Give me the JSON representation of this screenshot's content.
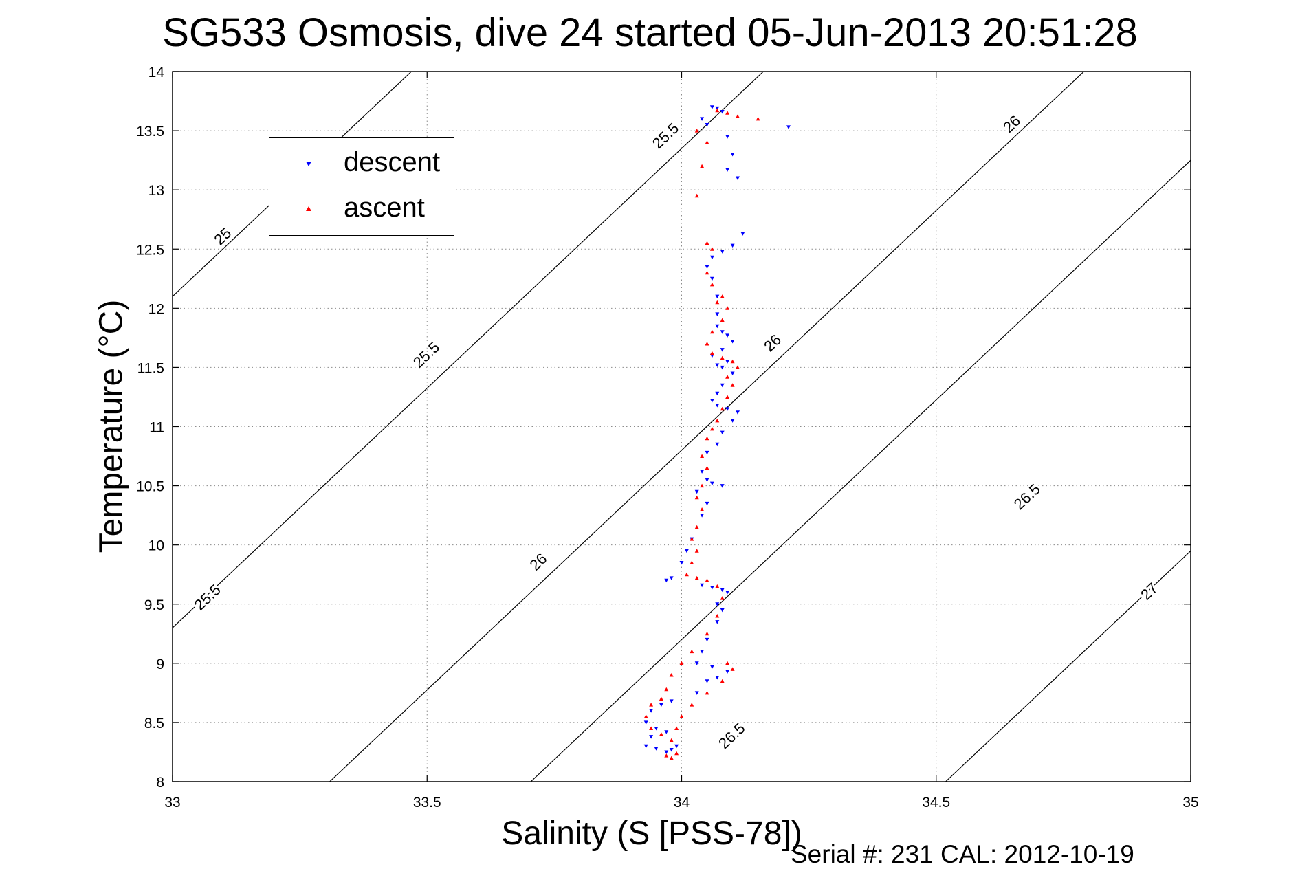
{
  "chart_data": {
    "type": "scatter",
    "title": "SG533 Osmosis, dive 24 started 05-Jun-2013 20:51:28",
    "xlabel": "Salinity (S [PSS-78])",
    "ylabel": "Temperature (°C)",
    "footer": "Serial #: 231  CAL: 2012-10-19",
    "xlim": [
      33,
      35
    ],
    "ylim": [
      8,
      14
    ],
    "xticks": [
      "33",
      "33.5",
      "34",
      "34.5",
      "35"
    ],
    "yticks": [
      "8",
      "8.5",
      "9",
      "9.5",
      "10",
      "10.5",
      "11",
      "11.5",
      "12",
      "12.5",
      "13",
      "13.5",
      "14"
    ],
    "grid": true,
    "legend_position": "top-left",
    "density_contours": [
      {
        "label": "25",
        "slope": 4.05,
        "intercept": -121.55
      },
      {
        "label": "25.5",
        "slope": 4.05,
        "intercept": -124.35
      },
      {
        "label": "25.5",
        "slope": 4.05,
        "intercept": -126.9
      },
      {
        "label": "26",
        "slope": 4.05,
        "intercept": -128.5
      },
      {
        "label": "26.5",
        "slope": 4.05,
        "intercept": -131.8
      },
      {
        "label": "27",
        "slope": 4.05,
        "intercept": -134.3
      }
    ],
    "contour_labels": [
      {
        "text": "25",
        "s": 33.1,
        "t": 12.6
      },
      {
        "text": "25.5",
        "s": 33.07,
        "t": 9.55
      },
      {
        "text": "25.5",
        "s": 33.5,
        "t": 11.6
      },
      {
        "text": "25.5",
        "s": 33.97,
        "t": 13.45
      },
      {
        "text": "26",
        "s": 33.72,
        "t": 9.85
      },
      {
        "text": "26",
        "s": 34.18,
        "t": 11.7
      },
      {
        "text": "26",
        "s": 34.65,
        "t": 13.55
      },
      {
        "text": "26.5",
        "s": 34.1,
        "t": 8.38
      },
      {
        "text": "26.5",
        "s": 34.68,
        "t": 10.4
      },
      {
        "text": "27",
        "s": 34.92,
        "t": 9.6
      }
    ],
    "series": [
      {
        "name": "descent",
        "color": "#0000ff",
        "marker": "triangle-down",
        "points": [
          [
            34.06,
            13.7
          ],
          [
            34.07,
            13.69
          ],
          [
            34.08,
            13.66
          ],
          [
            34.04,
            13.6
          ],
          [
            34.05,
            13.55
          ],
          [
            34.21,
            13.53
          ],
          [
            34.09,
            13.45
          ],
          [
            34.1,
            13.3
          ],
          [
            34.09,
            13.17
          ],
          [
            34.11,
            13.1
          ],
          [
            34.12,
            12.63
          ],
          [
            34.1,
            12.53
          ],
          [
            34.08,
            12.48
          ],
          [
            34.06,
            12.43
          ],
          [
            34.05,
            12.35
          ],
          [
            34.06,
            12.25
          ],
          [
            34.07,
            12.1
          ],
          [
            34.07,
            11.95
          ],
          [
            34.07,
            11.85
          ],
          [
            34.08,
            11.8
          ],
          [
            34.09,
            11.77
          ],
          [
            34.1,
            11.72
          ],
          [
            34.08,
            11.65
          ],
          [
            34.06,
            11.6
          ],
          [
            34.07,
            11.52
          ],
          [
            34.08,
            11.5
          ],
          [
            34.09,
            11.55
          ],
          [
            34.1,
            11.45
          ],
          [
            34.08,
            11.35
          ],
          [
            34.07,
            11.28
          ],
          [
            34.06,
            11.22
          ],
          [
            34.07,
            11.18
          ],
          [
            34.09,
            11.15
          ],
          [
            34.11,
            11.12
          ],
          [
            34.1,
            11.05
          ],
          [
            34.08,
            10.95
          ],
          [
            34.07,
            10.85
          ],
          [
            34.05,
            10.78
          ],
          [
            34.04,
            10.62
          ],
          [
            34.05,
            10.55
          ],
          [
            34.06,
            10.52
          ],
          [
            34.08,
            10.5
          ],
          [
            34.03,
            10.45
          ],
          [
            34.05,
            10.35
          ],
          [
            34.04,
            10.25
          ],
          [
            34.02,
            10.05
          ],
          [
            34.01,
            9.95
          ],
          [
            34.0,
            9.85
          ],
          [
            33.98,
            9.72
          ],
          [
            33.97,
            9.7
          ],
          [
            34.04,
            9.66
          ],
          [
            34.06,
            9.64
          ],
          [
            34.08,
            9.62
          ],
          [
            34.09,
            9.6
          ],
          [
            34.07,
            9.5
          ],
          [
            34.08,
            9.45
          ],
          [
            34.07,
            9.35
          ],
          [
            34.05,
            9.2
          ],
          [
            34.04,
            9.1
          ],
          [
            34.03,
            9.0
          ],
          [
            34.06,
            8.97
          ],
          [
            34.09,
            8.93
          ],
          [
            34.07,
            8.88
          ],
          [
            34.05,
            8.85
          ],
          [
            34.03,
            8.75
          ],
          [
            33.98,
            8.68
          ],
          [
            33.96,
            8.65
          ],
          [
            33.94,
            8.6
          ],
          [
            33.93,
            8.5
          ],
          [
            33.95,
            8.45
          ],
          [
            33.97,
            8.42
          ],
          [
            33.94,
            8.38
          ],
          [
            33.93,
            8.3
          ],
          [
            33.95,
            8.28
          ],
          [
            33.97,
            8.25
          ],
          [
            33.98,
            8.27
          ],
          [
            33.99,
            8.3
          ]
        ]
      },
      {
        "name": "ascent",
        "color": "#ff0000",
        "marker": "triangle-up",
        "points": [
          [
            34.07,
            13.67
          ],
          [
            34.09,
            13.65
          ],
          [
            34.11,
            13.62
          ],
          [
            34.15,
            13.6
          ],
          [
            34.03,
            13.5
          ],
          [
            34.05,
            13.4
          ],
          [
            34.04,
            13.2
          ],
          [
            34.03,
            12.95
          ],
          [
            34.05,
            12.55
          ],
          [
            34.06,
            12.5
          ],
          [
            34.05,
            12.3
          ],
          [
            34.06,
            12.2
          ],
          [
            34.07,
            12.05
          ],
          [
            34.08,
            12.1
          ],
          [
            34.09,
            12.0
          ],
          [
            34.08,
            11.9
          ],
          [
            34.06,
            11.8
          ],
          [
            34.05,
            11.7
          ],
          [
            34.06,
            11.62
          ],
          [
            34.08,
            11.58
          ],
          [
            34.1,
            11.55
          ],
          [
            34.11,
            11.5
          ],
          [
            34.09,
            11.42
          ],
          [
            34.1,
            11.35
          ],
          [
            34.09,
            11.25
          ],
          [
            34.08,
            11.15
          ],
          [
            34.07,
            11.05
          ],
          [
            34.06,
            10.98
          ],
          [
            34.05,
            10.9
          ],
          [
            34.04,
            10.75
          ],
          [
            34.05,
            10.65
          ],
          [
            34.04,
            10.5
          ],
          [
            34.03,
            10.4
          ],
          [
            34.04,
            10.3
          ],
          [
            34.03,
            10.15
          ],
          [
            34.02,
            10.05
          ],
          [
            34.03,
            9.95
          ],
          [
            34.02,
            9.85
          ],
          [
            34.01,
            9.75
          ],
          [
            34.03,
            9.72
          ],
          [
            34.05,
            9.7
          ],
          [
            34.07,
            9.65
          ],
          [
            34.08,
            9.55
          ],
          [
            34.07,
            9.4
          ],
          [
            34.05,
            9.25
          ],
          [
            34.02,
            9.1
          ],
          [
            34.0,
            9.0
          ],
          [
            33.98,
            8.9
          ],
          [
            33.97,
            8.78
          ],
          [
            33.96,
            8.7
          ],
          [
            33.94,
            8.65
          ],
          [
            33.93,
            8.55
          ],
          [
            33.94,
            8.45
          ],
          [
            33.96,
            8.4
          ],
          [
            33.98,
            8.35
          ],
          [
            33.99,
            8.45
          ],
          [
            34.0,
            8.55
          ],
          [
            34.02,
            8.65
          ],
          [
            34.05,
            8.75
          ],
          [
            34.08,
            8.85
          ],
          [
            34.1,
            8.95
          ],
          [
            34.09,
            9.0
          ],
          [
            33.97,
            8.22
          ],
          [
            33.98,
            8.2
          ],
          [
            33.99,
            8.24
          ]
        ]
      }
    ]
  }
}
